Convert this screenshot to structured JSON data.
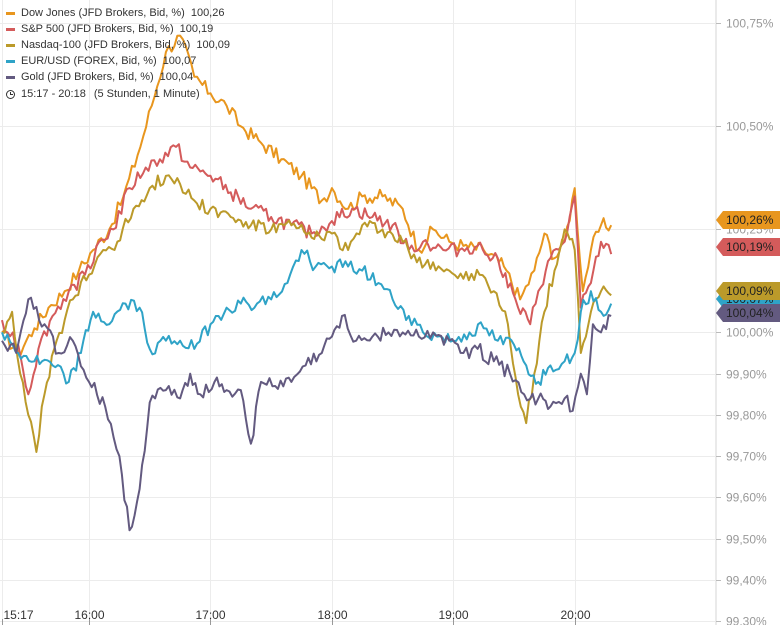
{
  "legend": {
    "items": [
      {
        "label": "Dow Jones (JFD Brokers, Bid, %)",
        "value": "100,26",
        "color": "#e8961e"
      },
      {
        "label": "S&P 500 (JFD Brokers, Bid, %)",
        "value": "100,19",
        "color": "#d45b5b"
      },
      {
        "label": "Nasdaq-100 (JFD Brokers, Bid, %)",
        "value": "100,09",
        "color": "#bb9a2a"
      },
      {
        "label": "EUR/USD (FOREX, Bid, %)",
        "value": "100,07",
        "color": "#2fa3c7"
      },
      {
        "label": "Gold (JFD Brokers, Bid, %)",
        "value": "100,04",
        "color": "#635a80"
      }
    ],
    "time_range": "15:17 - 20:18",
    "interval": "(5 Stunden, 1 Minute)"
  },
  "chart_data": {
    "type": "line",
    "x_range": [
      "15:17",
      "20:18"
    ],
    "ylim": [
      99.3,
      100.77
    ],
    "y_ticks": [
      {
        "value": 100.75,
        "label": "100,75%"
      },
      {
        "value": 100.5,
        "label": "100,50%"
      },
      {
        "value": 100.25,
        "label": "100,25%"
      },
      {
        "value": 100.0,
        "label": "100,00%"
      },
      {
        "value": 99.9,
        "label": "99,90%"
      },
      {
        "value": 99.8,
        "label": "99,80%"
      },
      {
        "value": 99.7,
        "label": "99,70%"
      },
      {
        "value": 99.6,
        "label": "99,60%"
      },
      {
        "value": 99.5,
        "label": "99,50%"
      },
      {
        "value": 99.4,
        "label": "99,40%"
      },
      {
        "value": 99.3,
        "label": "99,30%"
      }
    ],
    "x_ticks": [
      {
        "time": "15:17",
        "label": "15:17"
      },
      {
        "time": "16:00",
        "label": "16:00"
      },
      {
        "time": "17:00",
        "label": "17:00"
      },
      {
        "time": "18:00",
        "label": "18:00"
      },
      {
        "time": "19:00",
        "label": "19:00"
      },
      {
        "time": "20:00",
        "label": "20:00"
      }
    ],
    "grid": true,
    "legend_position": "top-left",
    "series": [
      {
        "name": "Dow Jones (JFD Brokers, Bid, %)",
        "color": "#e8961e",
        "last_label": "100,26%",
        "points": [
          [
            "15:17",
            100.0
          ],
          [
            "15:25",
            99.95
          ],
          [
            "15:33",
            100.01
          ],
          [
            "15:40",
            100.06
          ],
          [
            "15:48",
            100.1
          ],
          [
            "15:55",
            100.15
          ],
          [
            "16:02",
            100.2
          ],
          [
            "16:10",
            100.25
          ],
          [
            "16:17",
            100.33
          ],
          [
            "16:24",
            100.43
          ],
          [
            "16:31",
            100.55
          ],
          [
            "16:38",
            100.68
          ],
          [
            "16:45",
            100.72
          ],
          [
            "16:52",
            100.62
          ],
          [
            "17:00",
            100.58
          ],
          [
            "17:08",
            100.55
          ],
          [
            "17:15",
            100.5
          ],
          [
            "17:25",
            100.46
          ],
          [
            "17:35",
            100.42
          ],
          [
            "17:45",
            100.38
          ],
          [
            "17:55",
            100.32
          ],
          [
            "18:00",
            100.35
          ],
          [
            "18:08",
            100.3
          ],
          [
            "18:15",
            100.33
          ],
          [
            "18:25",
            100.33
          ],
          [
            "18:35",
            100.3
          ],
          [
            "18:43",
            100.2
          ],
          [
            "18:50",
            100.25
          ],
          [
            "18:58",
            100.22
          ],
          [
            "19:05",
            100.21
          ],
          [
            "19:15",
            100.2
          ],
          [
            "19:25",
            100.16
          ],
          [
            "19:33",
            100.08
          ],
          [
            "19:40",
            100.15
          ],
          [
            "19:45",
            100.24
          ],
          [
            "19:50",
            100.18
          ],
          [
            "19:55",
            100.22
          ],
          [
            "20:00",
            100.35
          ],
          [
            "20:04",
            100.1
          ],
          [
            "20:08",
            100.2
          ],
          [
            "20:13",
            100.26
          ],
          [
            "20:18",
            100.26
          ]
        ]
      },
      {
        "name": "S&P 500 (JFD Brokers, Bid, %)",
        "color": "#d45b5b",
        "last_label": "100,19%",
        "points": [
          [
            "15:17",
            100.03
          ],
          [
            "15:25",
            99.97
          ],
          [
            "15:30",
            99.85
          ],
          [
            "15:35",
            99.96
          ],
          [
            "15:42",
            100.04
          ],
          [
            "15:50",
            100.1
          ],
          [
            "15:58",
            100.14
          ],
          [
            "16:05",
            100.22
          ],
          [
            "16:12",
            100.25
          ],
          [
            "16:20",
            100.35
          ],
          [
            "16:28",
            100.4
          ],
          [
            "16:35",
            100.42
          ],
          [
            "16:43",
            100.45
          ],
          [
            "16:50",
            100.4
          ],
          [
            "17:00",
            100.38
          ],
          [
            "17:10",
            100.34
          ],
          [
            "17:20",
            100.3
          ],
          [
            "17:30",
            100.28
          ],
          [
            "17:40",
            100.26
          ],
          [
            "17:50",
            100.24
          ],
          [
            "18:00",
            100.27
          ],
          [
            "18:10",
            100.3
          ],
          [
            "18:20",
            100.28
          ],
          [
            "18:30",
            100.26
          ],
          [
            "18:38",
            100.2
          ],
          [
            "18:45",
            100.22
          ],
          [
            "18:55",
            100.2
          ],
          [
            "19:03",
            100.2
          ],
          [
            "19:12",
            100.21
          ],
          [
            "19:22",
            100.18
          ],
          [
            "19:32",
            100.06
          ],
          [
            "19:38",
            100.02
          ],
          [
            "19:42",
            100.1
          ],
          [
            "19:48",
            100.18
          ],
          [
            "19:55",
            100.22
          ],
          [
            "20:00",
            100.33
          ],
          [
            "20:03",
            100.06
          ],
          [
            "20:08",
            100.12
          ],
          [
            "20:13",
            100.22
          ],
          [
            "20:18",
            100.19
          ]
        ]
      },
      {
        "name": "Nasdaq-100 (JFD Brokers, Bid, %)",
        "color": "#bb9a2a",
        "last_label": "100,09%",
        "points": [
          [
            "15:17",
            100.0
          ],
          [
            "15:22",
            100.05
          ],
          [
            "15:26",
            99.9
          ],
          [
            "15:30",
            99.8
          ],
          [
            "15:34",
            99.71
          ],
          [
            "15:38",
            99.85
          ],
          [
            "15:44",
            99.98
          ],
          [
            "15:52",
            100.08
          ],
          [
            "16:00",
            100.14
          ],
          [
            "16:07",
            100.2
          ],
          [
            "16:14",
            100.22
          ],
          [
            "16:22",
            100.3
          ],
          [
            "16:30",
            100.35
          ],
          [
            "16:38",
            100.38
          ],
          [
            "16:45",
            100.36
          ],
          [
            "16:52",
            100.32
          ],
          [
            "17:00",
            100.3
          ],
          [
            "17:10",
            100.28
          ],
          [
            "17:20",
            100.26
          ],
          [
            "17:30",
            100.25
          ],
          [
            "17:40",
            100.26
          ],
          [
            "17:50",
            100.23
          ],
          [
            "18:00",
            100.24
          ],
          [
            "18:08",
            100.2
          ],
          [
            "18:15",
            100.26
          ],
          [
            "18:25",
            100.25
          ],
          [
            "18:35",
            100.22
          ],
          [
            "18:42",
            100.17
          ],
          [
            "18:50",
            100.17
          ],
          [
            "18:58",
            100.15
          ],
          [
            "19:05",
            100.13
          ],
          [
            "19:13",
            100.14
          ],
          [
            "19:20",
            100.1
          ],
          [
            "19:27",
            100.02
          ],
          [
            "19:32",
            99.85
          ],
          [
            "19:36",
            99.78
          ],
          [
            "19:40",
            99.9
          ],
          [
            "19:45",
            100.05
          ],
          [
            "19:50",
            100.15
          ],
          [
            "19:55",
            100.25
          ],
          [
            "20:00",
            100.2
          ],
          [
            "20:03",
            99.95
          ],
          [
            "20:08",
            100.05
          ],
          [
            "20:13",
            100.1
          ],
          [
            "20:18",
            100.09
          ]
        ]
      },
      {
        "name": "EUR/USD (FOREX, Bid, %)",
        "color": "#2fa3c7",
        "last_label": "100,07%",
        "points": [
          [
            "15:17",
            100.0
          ],
          [
            "15:25",
            99.95
          ],
          [
            "15:33",
            99.93
          ],
          [
            "15:42",
            99.92
          ],
          [
            "15:50",
            99.88
          ],
          [
            "15:56",
            99.95
          ],
          [
            "16:02",
            100.05
          ],
          [
            "16:10",
            100.02
          ],
          [
            "16:18",
            100.07
          ],
          [
            "16:25",
            100.06
          ],
          [
            "16:30",
            99.96
          ],
          [
            "16:38",
            99.98
          ],
          [
            "16:45",
            99.98
          ],
          [
            "16:52",
            99.96
          ],
          [
            "17:00",
            100.02
          ],
          [
            "17:08",
            100.06
          ],
          [
            "17:15",
            100.07
          ],
          [
            "17:23",
            100.07
          ],
          [
            "17:30",
            100.08
          ],
          [
            "17:38",
            100.12
          ],
          [
            "17:45",
            100.2
          ],
          [
            "17:52",
            100.16
          ],
          [
            "18:00",
            100.16
          ],
          [
            "18:08",
            100.16
          ],
          [
            "18:15",
            100.15
          ],
          [
            "18:23",
            100.12
          ],
          [
            "18:30",
            100.08
          ],
          [
            "18:38",
            100.04
          ],
          [
            "18:45",
            100.0
          ],
          [
            "18:52",
            99.99
          ],
          [
            "19:00",
            99.98
          ],
          [
            "19:08",
            100.0
          ],
          [
            "19:15",
            100.01
          ],
          [
            "19:22",
            99.98
          ],
          [
            "19:30",
            99.97
          ],
          [
            "19:36",
            99.92
          ],
          [
            "19:42",
            99.88
          ],
          [
            "19:48",
            99.92
          ],
          [
            "19:55",
            99.93
          ],
          [
            "20:00",
            99.95
          ],
          [
            "20:03",
            100.05
          ],
          [
            "20:08",
            100.1
          ],
          [
            "20:13",
            100.05
          ],
          [
            "20:18",
            100.07
          ]
        ]
      },
      {
        "name": "Gold (JFD Brokers, Bid, %)",
        "color": "#635a80",
        "last_label": "100,04%",
        "points": [
          [
            "15:17",
            99.98
          ],
          [
            "15:24",
            99.95
          ],
          [
            "15:30",
            100.08
          ],
          [
            "15:38",
            100.02
          ],
          [
            "15:45",
            99.95
          ],
          [
            "15:52",
            99.98
          ],
          [
            "16:00",
            99.88
          ],
          [
            "16:08",
            99.82
          ],
          [
            "16:15",
            99.7
          ],
          [
            "16:20",
            99.52
          ],
          [
            "16:25",
            99.62
          ],
          [
            "16:30",
            99.83
          ],
          [
            "16:38",
            99.86
          ],
          [
            "16:45",
            99.84
          ],
          [
            "16:50",
            99.9
          ],
          [
            "16:55",
            99.85
          ],
          [
            "17:02",
            99.88
          ],
          [
            "17:08",
            99.86
          ],
          [
            "17:15",
            99.86
          ],
          [
            "17:20",
            99.73
          ],
          [
            "17:25",
            99.88
          ],
          [
            "17:32",
            99.87
          ],
          [
            "17:40",
            99.88
          ],
          [
            "17:47",
            99.92
          ],
          [
            "17:55",
            99.95
          ],
          [
            "18:00",
            99.99
          ],
          [
            "18:05",
            100.04
          ],
          [
            "18:12",
            99.98
          ],
          [
            "18:20",
            99.99
          ],
          [
            "18:28",
            100.0
          ],
          [
            "18:35",
            100.0
          ],
          [
            "18:43",
            99.99
          ],
          [
            "18:50",
            100.0
          ],
          [
            "18:58",
            99.98
          ],
          [
            "19:05",
            99.95
          ],
          [
            "19:12",
            99.96
          ],
          [
            "19:20",
            99.93
          ],
          [
            "19:28",
            99.9
          ],
          [
            "19:35",
            99.85
          ],
          [
            "19:42",
            99.84
          ],
          [
            "19:48",
            99.82
          ],
          [
            "19:55",
            99.84
          ],
          [
            "19:59",
            99.81
          ],
          [
            "20:03",
            99.9
          ],
          [
            "20:06",
            99.85
          ],
          [
            "20:09",
            100.02
          ],
          [
            "20:13",
            100.0
          ],
          [
            "20:18",
            100.04
          ]
        ]
      }
    ]
  }
}
